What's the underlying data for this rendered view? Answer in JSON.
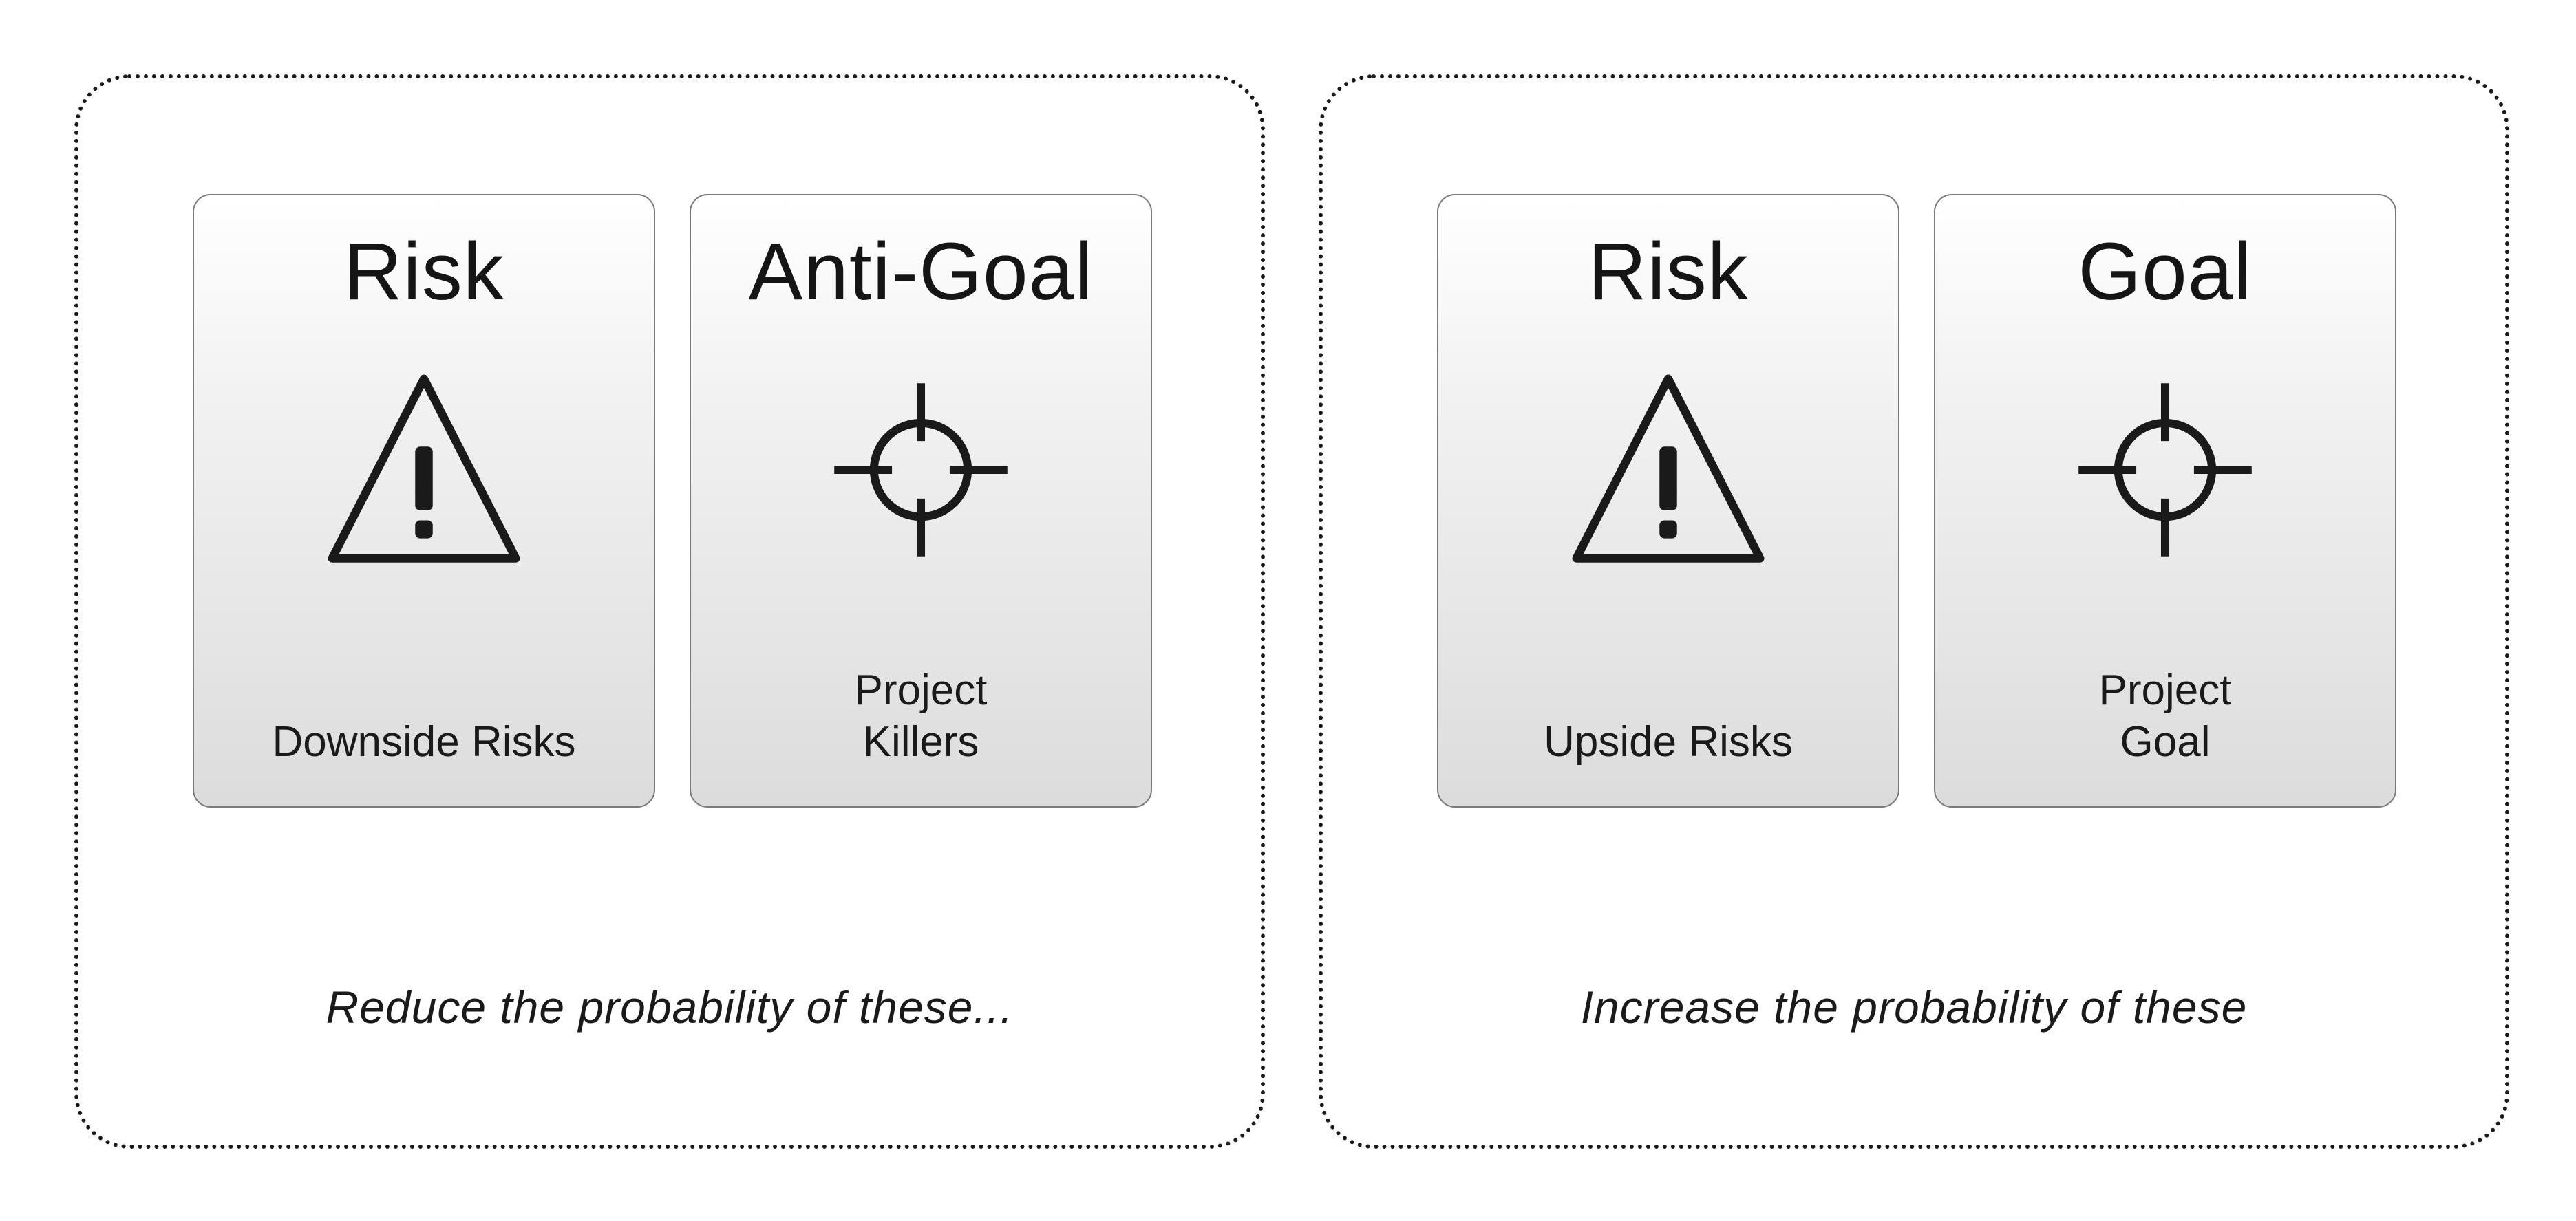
{
  "panels": [
    {
      "cards": [
        {
          "title": "Risk",
          "icon": "warning-icon",
          "caption": "Downside Risks"
        },
        {
          "title": "Anti-Goal",
          "icon": "target-icon",
          "caption": "Project\nKillers"
        }
      ],
      "caption": "Reduce the probability of these..."
    },
    {
      "cards": [
        {
          "title": "Risk",
          "icon": "warning-icon",
          "caption": "Upside Risks"
        },
        {
          "title": "Goal",
          "icon": "target-icon",
          "caption": "Project\nGoal"
        }
      ],
      "caption": "Increase the probability of these"
    }
  ],
  "colors": {
    "icon": "#1a1a1a",
    "card_border": "#7a7a7a",
    "panel_border": "#1a1a1a"
  }
}
